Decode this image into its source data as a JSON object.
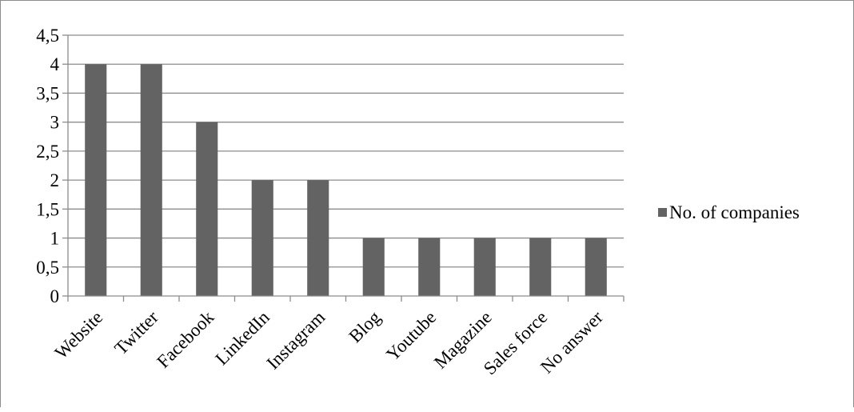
{
  "chart_data": {
    "type": "bar",
    "categories": [
      "Website",
      "Twitter",
      "Facebook",
      "LinkedIn",
      "Instagram",
      "Blog",
      "Youtube",
      "Magazine",
      "Sales force",
      "No answer"
    ],
    "series": [
      {
        "name": "No. of companies",
        "values": [
          4,
          4,
          3,
          2,
          2,
          1,
          1,
          1,
          1,
          1
        ]
      }
    ],
    "ylim": [
      0,
      4.5
    ],
    "yticks": [
      0,
      0.5,
      1,
      1.5,
      2,
      2.5,
      3,
      3.5,
      4,
      4.5
    ],
    "ytick_labels": [
      "0",
      "0,5",
      "1",
      "1,5",
      "2",
      "2,5",
      "3",
      "3,5",
      "4",
      "4,5"
    ],
    "title": "",
    "xlabel": "",
    "ylabel": "",
    "grid": true,
    "legend_position": "right",
    "colors": {
      "bar": "#636363",
      "grid": "#8c8c8c",
      "axis": "#8c8c8c"
    }
  }
}
